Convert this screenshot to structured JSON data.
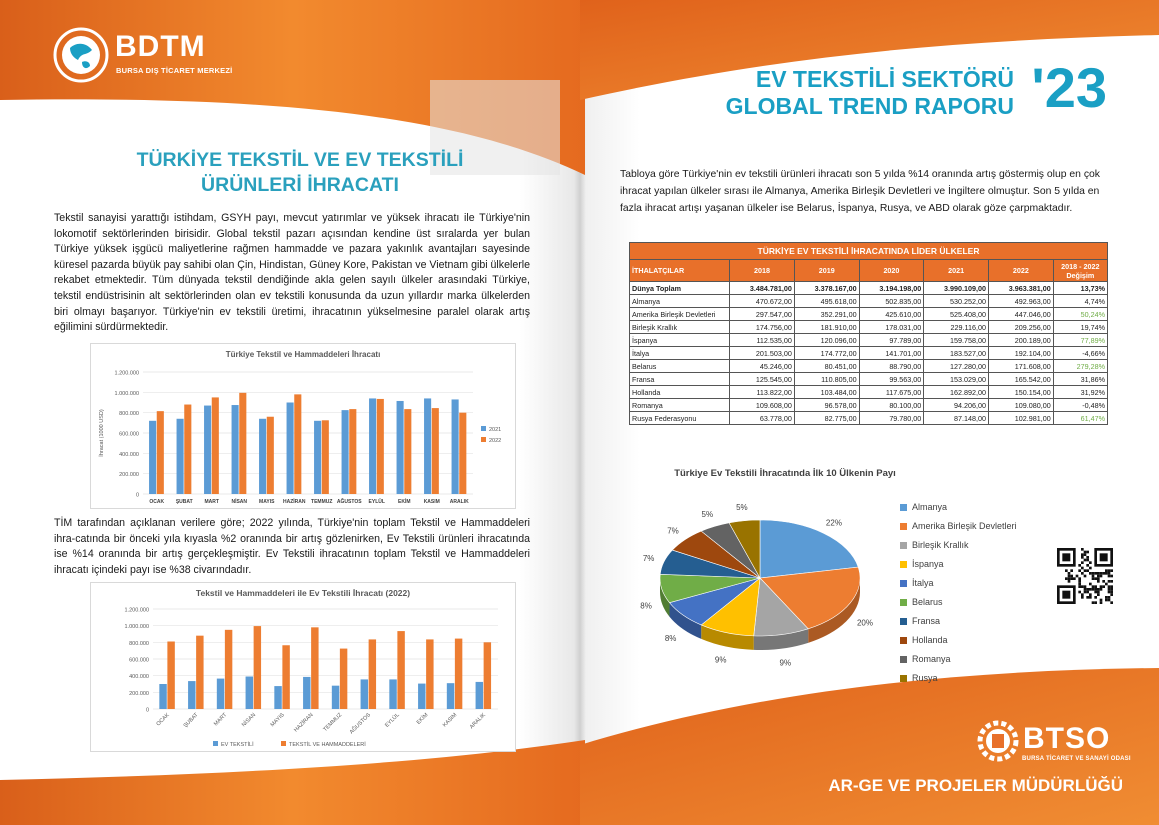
{
  "header": {
    "brand_name": "BDTM",
    "brand_sub": "BURSA DIŞ TİCARET MERKEZİ",
    "report_title_line1": "EV TEKSTİLİ SEKTÖRÜ",
    "report_title_line2": "GLOBAL TREND RAPORU",
    "report_year": "'23"
  },
  "left": {
    "heading_line1": "TÜRKİYE TEKSTİL VE EV TEKSTİLİ",
    "heading_line2": "ÜRÜNLERİ İHRACATI",
    "paragraph1": "Tekstil sanayisi yarattığı istihdam, GSYH payı, mevcut yatırımlar ve yüksek ihracatı ile Türkiye'nin lokomotif sektörlerinden birisidir. Global tekstil pazarı açısından kendine üst sıralarda yer bulan Türkiye yüksek işgücü maliyetlerine rağmen hammadde ve pazara yakınlık avantajları sayesinde küresel pazarda büyük pay sahibi olan Çin, Hindistan, Güney Kore, Pakistan ve Vietnam gibi ülkelerle rekabet etmektedir. Tüm dünyada tekstil dendiğinde akla gelen sayılı ülkeler arasındaki Türkiye, tekstil endüstrisinin alt sektörlerinden olan ev tekstili konusunda da uzun yıllardır marka ülkelerden biri olmayı başarıyor. Türkiye'nin ev tekstili üretimi, ihracatının yükselmesine paralel olarak artış eğilimini sürdürmektedir.",
    "paragraph2": "TİM tarafından açıklanan verilere göre; 2022 yılında, Türkiye'nin toplam Tekstil ve Hammaddeleri ihra-catında bir önceki yıla kıyasla %2 oranında bir artış gözlenirken, Ev Tekstili ürünleri ihracatında ise %14 oranında bir artış gerçekleşmiştir. Ev Tekstili ihracatının toplam Tekstil ve Hammaddeleri ihracatı içindeki payı ise %38 civarındadır."
  },
  "right": {
    "paragraph": "Tabloya göre Türkiye'nin ev tekstili ürünleri ihracatı son 5 yılda %14 oranında artış göstermiş olup en çok ihracat yapılan ülkeler sırası ile Almanya, Amerika Birleşik Devletleri ve İngiltere olmuştur. Son 5 yılda en fazla ihracat artışı yaşanan ülkeler ise Belarus, İspanya, Rusya, ve ABD olarak göze çarpmaktadır.",
    "table": {
      "caption": "TÜRKİYE EV TEKSTİLİ İHRACATINDA LİDER ÜLKELER",
      "headers": [
        "İTHALATÇILAR",
        "2018",
        "2019",
        "2020",
        "2021",
        "2022",
        "2018 - 2022 Değişim"
      ],
      "rows": [
        [
          "Dünya Toplam",
          "3.484.781,00",
          "3.378.167,00",
          "3.194.198,00",
          "3.990.109,00",
          "3.963.381,00",
          "13,73%"
        ],
        [
          "Almanya",
          "470.672,00",
          "495.618,00",
          "502.835,00",
          "530.252,00",
          "492.963,00",
          "4,74%"
        ],
        [
          "Amerika Birleşik Devletleri",
          "297.547,00",
          "352.291,00",
          "425.610,00",
          "525.408,00",
          "447.046,00",
          "50,24%"
        ],
        [
          "Birleşik Krallık",
          "174.756,00",
          "181.910,00",
          "178.031,00",
          "229.116,00",
          "209.256,00",
          "19,74%"
        ],
        [
          "İspanya",
          "112.535,00",
          "120.096,00",
          "97.789,00",
          "159.758,00",
          "200.189,00",
          "77,89%"
        ],
        [
          "İtalya",
          "201.503,00",
          "174.772,00",
          "141.701,00",
          "183.527,00",
          "192.104,00",
          "-4,66%"
        ],
        [
          "Belarus",
          "45.246,00",
          "80.451,00",
          "88.790,00",
          "127.280,00",
          "171.608,00",
          "279,28%"
        ],
        [
          "Fransa",
          "125.545,00",
          "110.805,00",
          "99.563,00",
          "153.029,00",
          "165.542,00",
          "31,86%"
        ],
        [
          "Hollanda",
          "113.822,00",
          "103.484,00",
          "117.675,00",
          "162.892,00",
          "150.154,00",
          "31,92%"
        ],
        [
          "Romanya",
          "109.608,00",
          "96.578,00",
          "80.100,00",
          "94.206,00",
          "109.080,00",
          "-0,48%"
        ],
        [
          "Rusya Federasyonu",
          "63.778,00",
          "82.775,00",
          "79.780,00",
          "87.148,00",
          "102.981,00",
          "61,47%"
        ]
      ]
    }
  },
  "colors": {
    "orange": "#e8702a",
    "teal": "#2aa0bd",
    "blue": "#5b9bd5",
    "orange_series": "#ed7d31",
    "green_text": "#70ad47"
  },
  "chart_data": [
    {
      "type": "bar",
      "title": "Türkiye Tekstil ve Hammaddeleri İhracatı",
      "ylabel": "İhracat (1000 USD)",
      "ylim": [
        0,
        1200000
      ],
      "yticks": [
        "0",
        "200.000",
        "400.000",
        "600.000",
        "800.000",
        "1.000.000",
        "1.200.000"
      ],
      "categories": [
        "OCAK",
        "ŞUBAT",
        "MART",
        "NİSAN",
        "MAYIS",
        "HAZİRAN",
        "TEMMUZ",
        "AĞUSTOS",
        "EYLÜL",
        "EKİM",
        "KASIM",
        "ARALIK"
      ],
      "series": [
        {
          "name": "2021",
          "color": "#5b9bd5",
          "values": [
            720000,
            740000,
            870000,
            875000,
            740000,
            900000,
            720000,
            825000,
            940000,
            915000,
            940000,
            930000
          ]
        },
        {
          "name": "2022",
          "color": "#ed7d31",
          "values": [
            815000,
            880000,
            950000,
            995000,
            760000,
            980000,
            725000,
            835000,
            935000,
            835000,
            845000,
            800000
          ]
        }
      ],
      "legend": "right"
    },
    {
      "type": "bar",
      "title": "Tekstil ve Hammaddeleri ile Ev Tekstili İhracatı (2022)",
      "ylim": [
        0,
        1200000
      ],
      "yticks": [
        "0",
        "200.000",
        "400.000",
        "600.000",
        "800.000",
        "1.000.000",
        "1.200.000"
      ],
      "categories": [
        "OCAK",
        "ŞUBAT",
        "MART",
        "NİSAN",
        "MAYIS",
        "HAZİRAN",
        "TEMMUZ",
        "AĞUSTOS",
        "EYLÜL",
        "EKİM",
        "KASIM",
        "ARALIK"
      ],
      "series": [
        {
          "name": "EV TEKSTİLİ",
          "color": "#5b9bd5",
          "values": [
            300000,
            335000,
            365000,
            390000,
            275000,
            385000,
            280000,
            355000,
            355000,
            305000,
            310000,
            325000
          ]
        },
        {
          "name": "TEKSTİL VE HAMMADDELERİ",
          "color": "#ed7d31",
          "values": [
            810000,
            880000,
            950000,
            995000,
            765000,
            980000,
            725000,
            835000,
            935000,
            835000,
            845000,
            800000
          ]
        }
      ],
      "legend": "bottom"
    },
    {
      "type": "pie",
      "title": "Türkiye Ev Tekstili İhracatında İlk 10 Ülkenin Payı",
      "labels": [
        "Almanya",
        "Amerika Birleşik Devletleri",
        "Birleşik Krallık",
        "İspanya",
        "İtalya",
        "Belarus",
        "Fransa",
        "Hollanda",
        "Romanya",
        "Rusya"
      ],
      "values": [
        22,
        20,
        9,
        9,
        8,
        8,
        7,
        7,
        5,
        5
      ],
      "value_labels": [
        "22%",
        "20%",
        "9%",
        "9%",
        "8%",
        "8%",
        "7%",
        "7%",
        "5%",
        "5%"
      ],
      "colors": [
        "#5b9bd5",
        "#ed7d31",
        "#a5a5a5",
        "#ffc000",
        "#4472c4",
        "#70ad47",
        "#255e91",
        "#9e480e",
        "#636363",
        "#997300"
      ],
      "legend": "right"
    }
  ],
  "footer": {
    "btso_name": "BTSO",
    "btso_sub": "BURSA TİCARET VE SANAYİ ODASI",
    "department": "AR-GE VE PROJELER MÜDÜRLÜĞÜ"
  }
}
